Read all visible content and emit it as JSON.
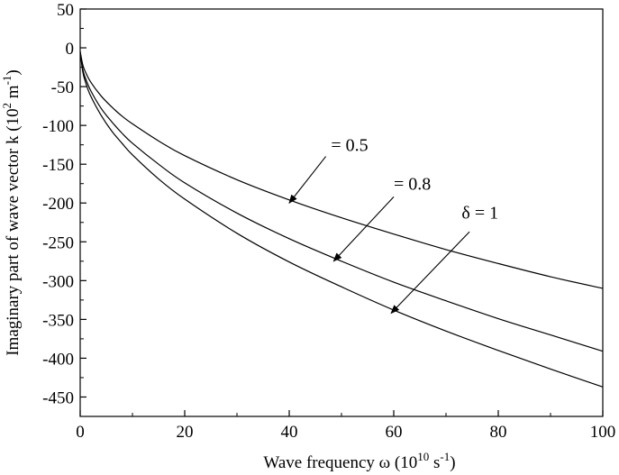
{
  "chart_data": {
    "type": "line",
    "xlabel": "Wave frequency ω (10",
    "xlabel_exp": "10",
    "xlabel_unit": " s",
    "xlabel_unit_exp": "-1",
    "xlabel_close": ")",
    "ylabel": "Imaginary part of wave vector k (10",
    "ylabel_exp": "2",
    "ylabel_unit": " m",
    "ylabel_unit_exp": "-1",
    "ylabel_close": ")",
    "xlim": [
      0,
      100
    ],
    "ylim": [
      -475,
      50
    ],
    "x_ticks": [
      0,
      20,
      40,
      60,
      80,
      100
    ],
    "y_ticks": [
      50,
      0,
      -50,
      -100,
      -150,
      -200,
      -250,
      -300,
      -350,
      -400,
      -450
    ],
    "grid": false,
    "series": [
      {
        "name": "= 0.5",
        "x": [
          0,
          0.5,
          1,
          2,
          4,
          6,
          8,
          10,
          15,
          20,
          30,
          40,
          50,
          60,
          70,
          80,
          90,
          100
        ],
        "y": [
          -5,
          -22,
          -31,
          -44,
          -62,
          -76,
          -88,
          -98,
          -120,
          -139,
          -170,
          -196,
          -219,
          -240,
          -260,
          -278,
          -295,
          -310
        ]
      },
      {
        "name": "= 0.8",
        "x": [
          0,
          0.5,
          1,
          2,
          4,
          6,
          8,
          10,
          15,
          20,
          30,
          40,
          50,
          60,
          70,
          80,
          90,
          100
        ],
        "y": [
          -5,
          -28,
          -39,
          -55,
          -78,
          -95,
          -110,
          -123,
          -150,
          -174,
          -213,
          -246,
          -275,
          -302,
          -326,
          -349,
          -370,
          -391
        ]
      },
      {
        "name": "δ = 1",
        "x": [
          0,
          0.5,
          1,
          2,
          4,
          6,
          8,
          10,
          15,
          20,
          30,
          40,
          50,
          60,
          70,
          80,
          90,
          100
        ],
        "y": [
          -5,
          -31,
          -44,
          -62,
          -87,
          -107,
          -123,
          -138,
          -169,
          -195,
          -239,
          -276,
          -308,
          -338,
          -365,
          -390,
          -414,
          -437
        ]
      }
    ],
    "annotations": [
      {
        "text": "= 0.5",
        "label_at": [
          48,
          -125
        ],
        "arrow_from": [
          47,
          -140
        ],
        "arrow_to": [
          40,
          -200
        ]
      },
      {
        "text": "= 0.8",
        "label_at": [
          60,
          -175
        ],
        "arrow_from": [
          60,
          -192
        ],
        "arrow_to": [
          48.5,
          -275
        ]
      },
      {
        "text": "δ = 1",
        "label_at": [
          73,
          -212
        ],
        "arrow_from": [
          74.5,
          -237
        ],
        "arrow_to": [
          59.5,
          -342
        ]
      }
    ]
  }
}
